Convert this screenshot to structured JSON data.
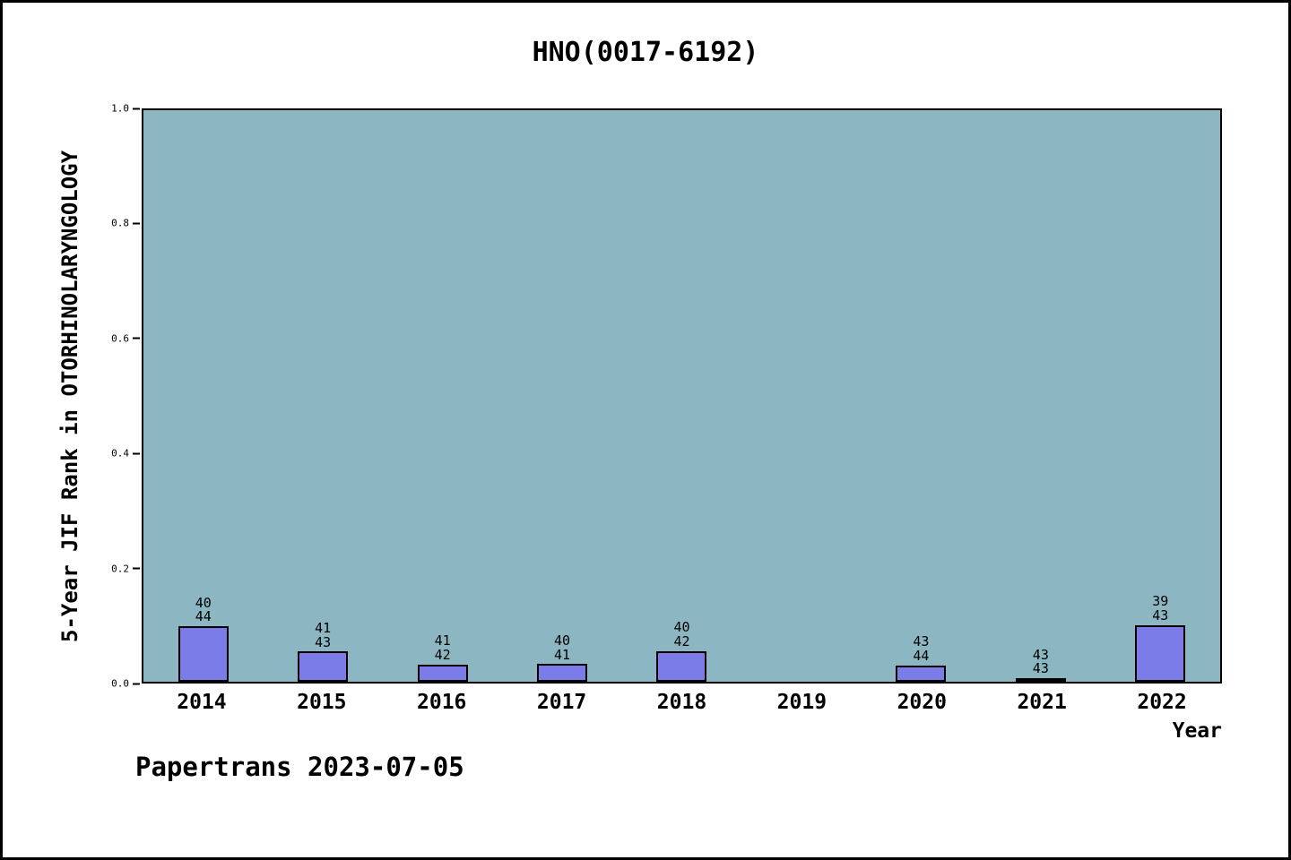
{
  "title": "HNO(0017-6192)",
  "footer": "Papertrans 2023-07-05",
  "chart_data": {
    "type": "bar",
    "title": "HNO(0017-6192)",
    "xlabel": "Year",
    "ylabel": "5-Year JIF Rank in OTORHINOLARYNGOLOGY",
    "ylim": [
      0.0,
      1.0
    ],
    "yticks": [
      0.0,
      0.2,
      0.4,
      0.6,
      0.8,
      1.0
    ],
    "grid": false,
    "legend": "none",
    "plot_bg_color": "#8db6c3",
    "bar_color": "#7c7ce8",
    "bar_edge_color": "#000000",
    "categories": [
      "2014",
      "2015",
      "2016",
      "2017",
      "2018",
      "2019",
      "2020",
      "2021",
      "2022"
    ],
    "bars": [
      {
        "year": "2014",
        "rank": 40,
        "total": 44,
        "value": 0.0909
      },
      {
        "year": "2015",
        "rank": 41,
        "total": 43,
        "value": 0.0465
      },
      {
        "year": "2016",
        "rank": 41,
        "total": 42,
        "value": 0.0238
      },
      {
        "year": "2017",
        "rank": 40,
        "total": 41,
        "value": 0.0244
      },
      {
        "year": "2018",
        "rank": 40,
        "total": 42,
        "value": 0.0476
      },
      {
        "year": "2019",
        "rank": null,
        "total": null,
        "value": null
      },
      {
        "year": "2020",
        "rank": 43,
        "total": 44,
        "value": 0.0227
      },
      {
        "year": "2021",
        "rank": 43,
        "total": 43,
        "value": 0.0
      },
      {
        "year": "2022",
        "rank": 39,
        "total": 43,
        "value": 0.093
      }
    ]
  }
}
